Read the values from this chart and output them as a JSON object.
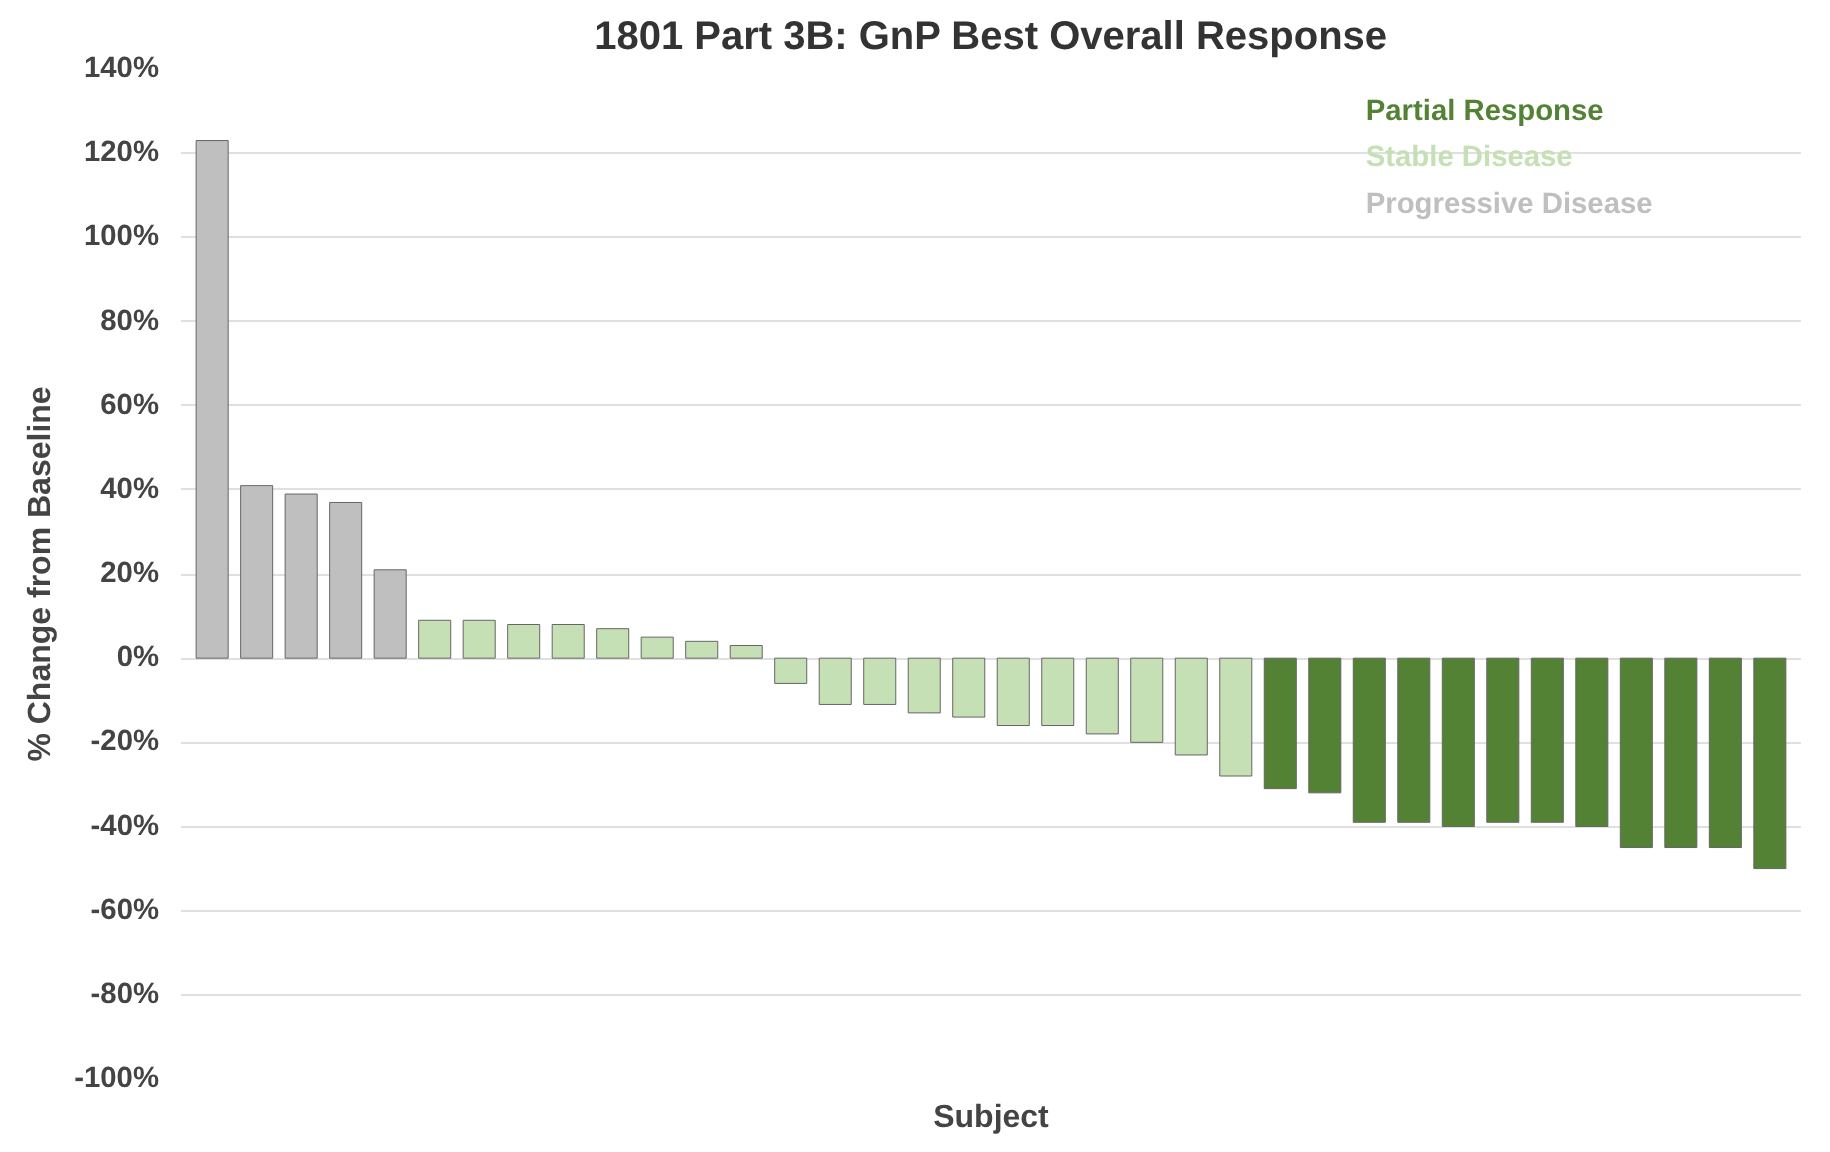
{
  "chart_data": {
    "type": "bar",
    "title": "1801 Part 3B: GnP Best Overall Response",
    "xlabel": "Subject",
    "ylabel": "% Change from Baseline",
    "categories": [
      null,
      null,
      null,
      null,
      null,
      null,
      null,
      null,
      null,
      null,
      null,
      null,
      null,
      null,
      null,
      null,
      null,
      null,
      null,
      null,
      null,
      null,
      null,
      null,
      null,
      null,
      null,
      null,
      null,
      null,
      null,
      null,
      null,
      null,
      null,
      null
    ],
    "series": [
      {
        "name": "Partial Response",
        "color": "#548235",
        "values": [
          null,
          null,
          null,
          null,
          null,
          null,
          null,
          null,
          null,
          null,
          null,
          null,
          null,
          null,
          null,
          null,
          null,
          null,
          null,
          null,
          null,
          null,
          null,
          null,
          -31,
          -32,
          -39,
          -39,
          -40,
          -39,
          -39,
          -40,
          -45,
          -45,
          -45,
          -50
        ]
      },
      {
        "name": "Stable Disease",
        "color": "#c5e0b4",
        "values": [
          null,
          null,
          null,
          null,
          null,
          9,
          9,
          8,
          8,
          7,
          5,
          4,
          3,
          -6,
          -11,
          -11,
          -13,
          -14,
          -16,
          -16,
          -18,
          -20,
          -23,
          -28,
          null,
          null,
          null,
          null,
          null,
          null,
          null,
          null,
          null,
          null,
          null,
          null
        ]
      },
      {
        "name": "Progressive Disease",
        "color": "#bfbfbf",
        "values": [
          123,
          41,
          39,
          37,
          21,
          null,
          null,
          null,
          null,
          null,
          null,
          null,
          null,
          null,
          null,
          null,
          null,
          null,
          null,
          null,
          null,
          null,
          null,
          null,
          null,
          null,
          null,
          null,
          null,
          null,
          null,
          null,
          null,
          null,
          null,
          null
        ]
      }
    ],
    "ylim": [
      -100,
      140
    ],
    "yticks": [
      {
        "value": -100,
        "label": "-100%"
      },
      {
        "value": -80,
        "label": "-80%"
      },
      {
        "value": -60,
        "label": "-60%"
      },
      {
        "value": -40,
        "label": "-40%"
      },
      {
        "value": -20,
        "label": "-20%"
      },
      {
        "value": 0,
        "label": "0%"
      },
      {
        "value": 20,
        "label": "20%"
      },
      {
        "value": 40,
        "label": "40%"
      },
      {
        "value": 60,
        "label": "60%"
      },
      {
        "value": 80,
        "label": "80%"
      },
      {
        "value": 100,
        "label": "100%"
      },
      {
        "value": 120,
        "label": "120%"
      },
      {
        "value": 140,
        "label": "140%"
      }
    ],
    "grid": "y",
    "legend": "top right",
    "tick_labels": "y"
  }
}
